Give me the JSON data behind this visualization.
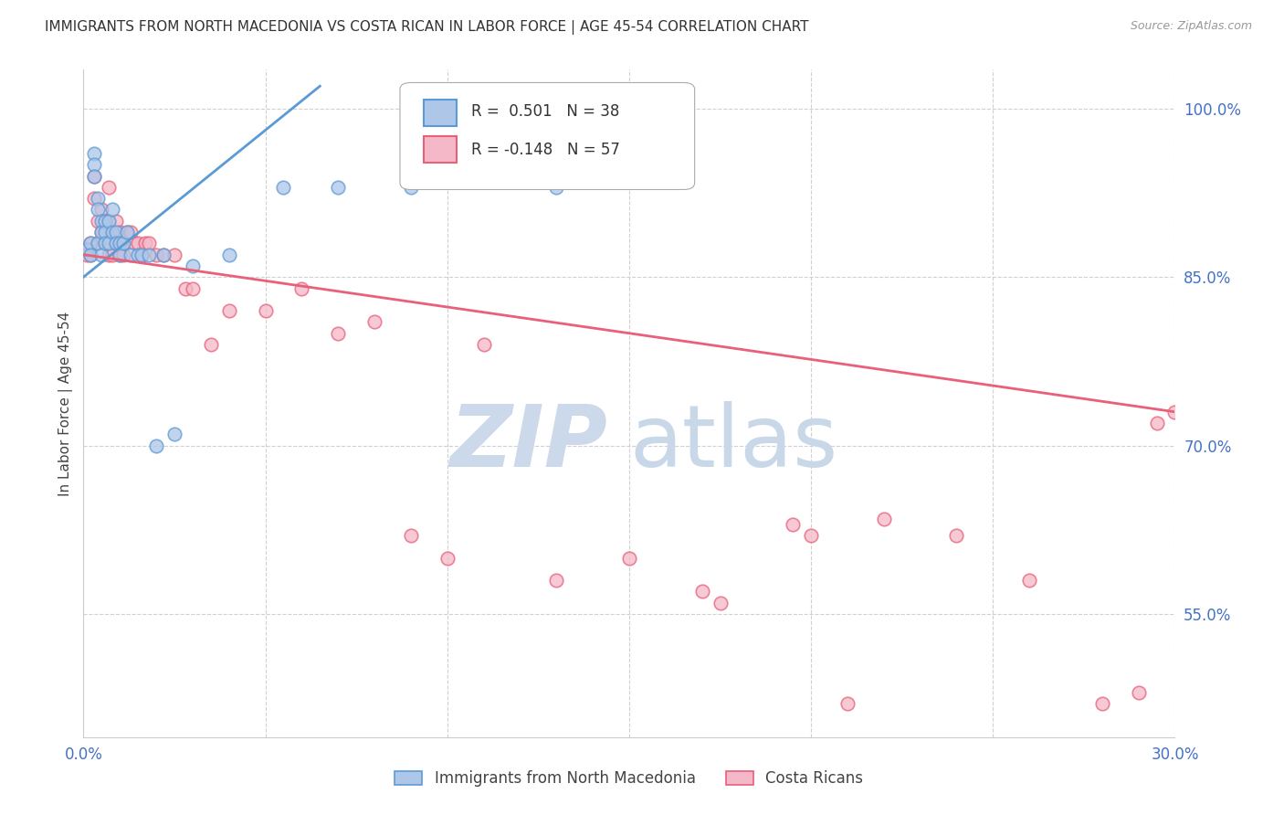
{
  "title": "IMMIGRANTS FROM NORTH MACEDONIA VS COSTA RICAN IN LABOR FORCE | AGE 45-54 CORRELATION CHART",
  "source_text": "Source: ZipAtlas.com",
  "ylabel": "In Labor Force | Age 45-54",
  "xlim": [
    0.0,
    0.3
  ],
  "ylim": [
    0.44,
    1.035
  ],
  "xticks": [
    0.0,
    0.05,
    0.1,
    0.15,
    0.2,
    0.25,
    0.3
  ],
  "xticklabels": [
    "0.0%",
    "",
    "",
    "",
    "",
    "",
    "30.0%"
  ],
  "yticks_right": [
    0.55,
    0.7,
    0.85,
    1.0
  ],
  "yticklabels_right": [
    "55.0%",
    "70.0%",
    "85.0%",
    "100.0%"
  ],
  "blue_R": 0.501,
  "blue_N": 38,
  "pink_R": -0.148,
  "pink_N": 57,
  "blue_color": "#aec6e8",
  "blue_line_color": "#5b9bd5",
  "pink_color": "#f4b8c8",
  "pink_line_color": "#e8607a",
  "legend_label_blue": "Immigrants from North Macedonia",
  "legend_label_pink": "Costa Ricans",
  "watermark_zip": "ZIP",
  "watermark_atlas": "atlas",
  "watermark_color": "#ccd9ea",
  "watermark_atlas_color": "#c8d8e8",
  "background_color": "#ffffff",
  "grid_color": "#d0d0d0",
  "blue_x": [
    0.001,
    0.002,
    0.002,
    0.003,
    0.003,
    0.003,
    0.004,
    0.004,
    0.004,
    0.005,
    0.005,
    0.005,
    0.006,
    0.006,
    0.006,
    0.007,
    0.007,
    0.008,
    0.008,
    0.009,
    0.009,
    0.01,
    0.01,
    0.011,
    0.012,
    0.013,
    0.015,
    0.016,
    0.018,
    0.02,
    0.022,
    0.025,
    0.03,
    0.04,
    0.055,
    0.07,
    0.09,
    0.13
  ],
  "blue_y": [
    0.875,
    0.88,
    0.87,
    0.96,
    0.95,
    0.94,
    0.92,
    0.91,
    0.88,
    0.9,
    0.89,
    0.87,
    0.9,
    0.89,
    0.88,
    0.9,
    0.88,
    0.91,
    0.89,
    0.89,
    0.88,
    0.88,
    0.87,
    0.88,
    0.89,
    0.87,
    0.87,
    0.87,
    0.87,
    0.7,
    0.87,
    0.71,
    0.86,
    0.87,
    0.93,
    0.93,
    0.93,
    0.93
  ],
  "pink_x": [
    0.001,
    0.002,
    0.002,
    0.003,
    0.003,
    0.004,
    0.004,
    0.005,
    0.005,
    0.006,
    0.006,
    0.007,
    0.007,
    0.007,
    0.008,
    0.008,
    0.009,
    0.009,
    0.01,
    0.01,
    0.011,
    0.011,
    0.012,
    0.013,
    0.014,
    0.015,
    0.016,
    0.017,
    0.018,
    0.02,
    0.022,
    0.025,
    0.028,
    0.03,
    0.035,
    0.04,
    0.05,
    0.06,
    0.07,
    0.08,
    0.09,
    0.1,
    0.11,
    0.13,
    0.15,
    0.17,
    0.2,
    0.22,
    0.24,
    0.26,
    0.28,
    0.29,
    0.295,
    0.3,
    0.175,
    0.195,
    0.21
  ],
  "pink_y": [
    0.87,
    0.88,
    0.87,
    0.94,
    0.92,
    0.9,
    0.88,
    0.91,
    0.89,
    0.9,
    0.88,
    0.93,
    0.9,
    0.87,
    0.89,
    0.87,
    0.9,
    0.88,
    0.89,
    0.87,
    0.88,
    0.87,
    0.89,
    0.89,
    0.88,
    0.88,
    0.87,
    0.88,
    0.88,
    0.87,
    0.87,
    0.87,
    0.84,
    0.84,
    0.79,
    0.82,
    0.82,
    0.84,
    0.8,
    0.81,
    0.62,
    0.6,
    0.79,
    0.58,
    0.6,
    0.57,
    0.62,
    0.635,
    0.62,
    0.58,
    0.47,
    0.48,
    0.72,
    0.73,
    0.56,
    0.63,
    0.47
  ],
  "blue_line_x": [
    0.0,
    0.065
  ],
  "blue_line_y": [
    0.85,
    1.02
  ],
  "pink_line_x": [
    0.0,
    0.3
  ],
  "pink_line_y": [
    0.87,
    0.73
  ]
}
